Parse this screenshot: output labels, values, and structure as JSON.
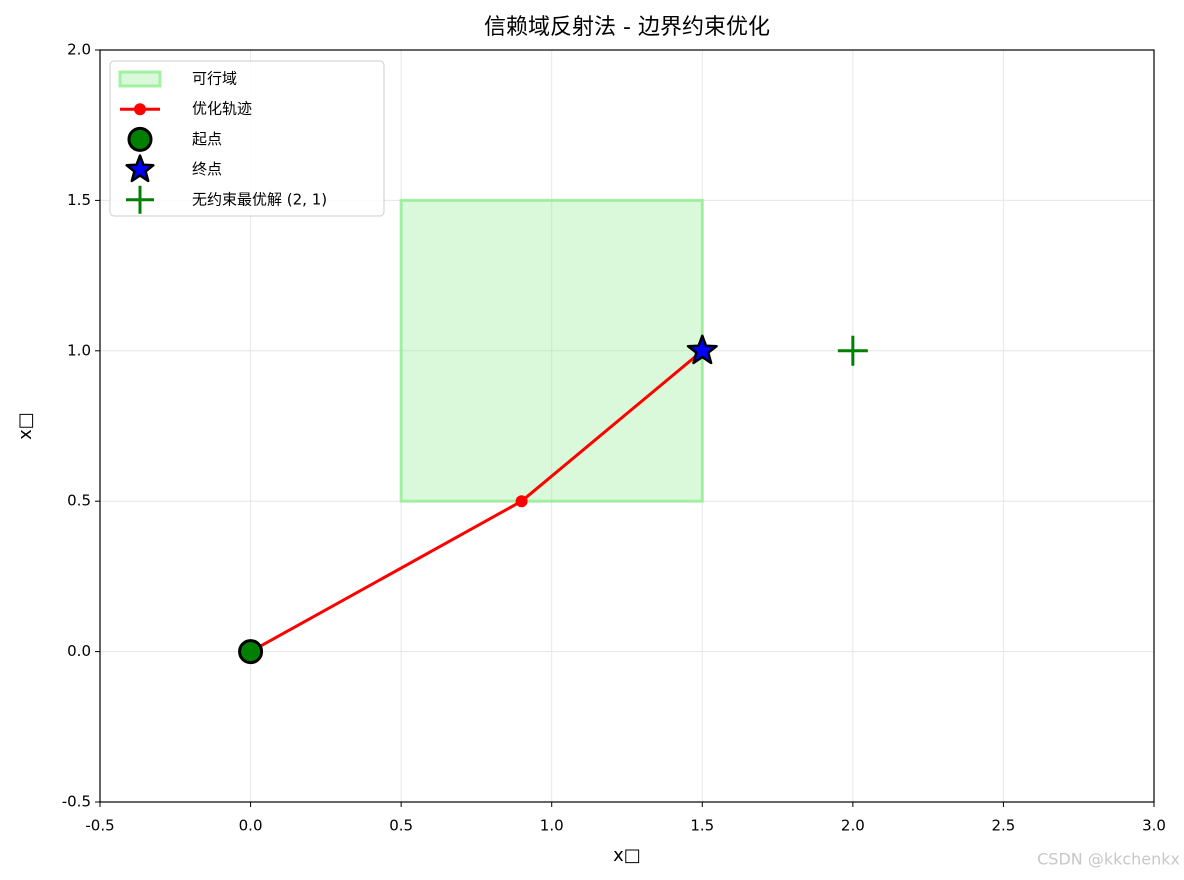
{
  "chart_data": {
    "type": "line",
    "title": "信赖域反射法 - 边界约束优化",
    "xlabel": "x□",
    "ylabel": "x□",
    "watermark": "CSDN @kkchenkx",
    "xlim": [
      -0.5,
      3.0
    ],
    "ylim": [
      -0.5,
      2.0
    ],
    "xticks": [
      -0.5,
      {
        "value": 0,
        "label": "0.0"
      },
      0.5,
      {
        "value": 1,
        "label": "1.0"
      },
      1.5,
      {
        "value": 2,
        "label": "2.0"
      },
      2.5,
      {
        "value": 3,
        "label": "3.0"
      }
    ],
    "yticks": [
      -0.5,
      {
        "value": 0,
        "label": "0.0"
      },
      0.5,
      {
        "value": 1,
        "label": "1.0"
      },
      1.5,
      {
        "value": 2,
        "label": "2.0"
      }
    ],
    "grid": true,
    "legend": "upper left",
    "series": [
      {
        "name": "可行域",
        "type": "rect",
        "color": "#90ee90",
        "x": [
          0.5,
          1.5
        ],
        "values": [
          0.5,
          1.5
        ]
      },
      {
        "name": "优化轨迹",
        "type": "line",
        "color": "#ff0000",
        "x": [
          0,
          0.9,
          1.5
        ],
        "values": [
          0,
          0.5,
          1.0
        ]
      },
      {
        "name": "起点",
        "type": "circle",
        "color": "#008000",
        "x": [
          0
        ],
        "values": [
          0
        ]
      },
      {
        "name": "终点",
        "type": "star",
        "color": "#0000ff",
        "x": [
          1.5
        ],
        "values": [
          1.0
        ]
      },
      {
        "name": "无约束最优解 (2, 1)",
        "type": "plus",
        "color": "#008000",
        "x": [
          2
        ],
        "values": [
          1
        ]
      }
    ]
  }
}
